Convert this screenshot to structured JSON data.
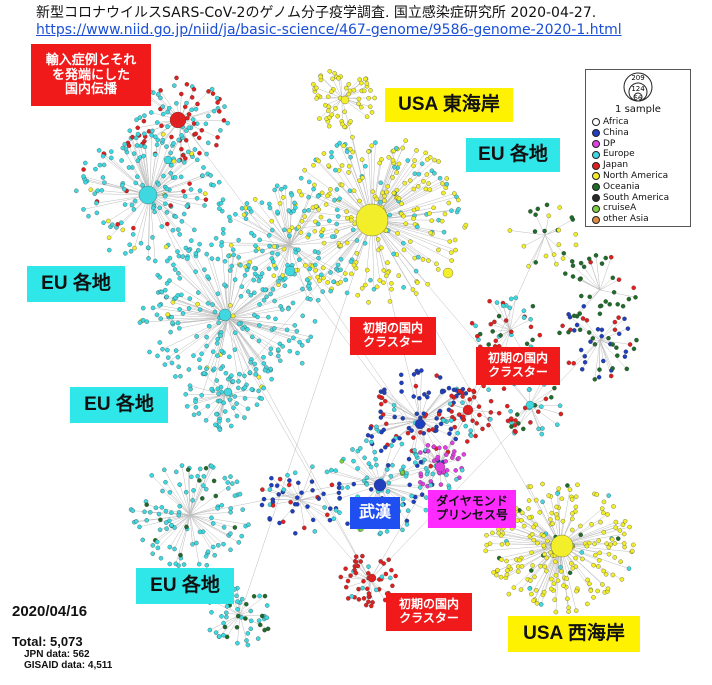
{
  "header": {
    "title": "新型コロナウイルスSARS-CoV-2のゲノム分子疫学調査. 国立感染症研究所 2020-04-27.",
    "link": "https://www.niid.go.jp/niid/ja/basic-science/467-genome/9586-genome-2020-1.html"
  },
  "labels": {
    "import_spread": [
      "輸入症例とそれ",
      "を発端にした",
      "国内伝播"
    ],
    "usa_east": "USA 東海岸",
    "eu_1": "EU 各地",
    "eu_2": "EU 各地",
    "eu_3": "EU 各地",
    "eu_4": "EU 各地",
    "early_cluster_1": [
      "初期の国内",
      "クラスター"
    ],
    "early_cluster_2": [
      "初期の国内",
      "クラスター"
    ],
    "early_cluster_3": [
      "初期の国内",
      "クラスター"
    ],
    "wuhan": "武漢",
    "diamond": [
      "ダイヤモンド",
      "プリンセス号"
    ],
    "usa_west": "USA 西海岸"
  },
  "legend": {
    "size_values": [
      "209",
      "124",
      "56"
    ],
    "one_sample": "1 sample",
    "items": [
      {
        "label": "Africa",
        "color": "#ffffff"
      },
      {
        "label": "China",
        "color": "#1f3fbf"
      },
      {
        "label": "DP",
        "color": "#e040e0"
      },
      {
        "label": "Europe",
        "color": "#3fd8e0"
      },
      {
        "label": "Japan",
        "color": "#e02020"
      },
      {
        "label": "North America",
        "color": "#f2ef2a"
      },
      {
        "label": "Oceania",
        "color": "#1f6b2a"
      },
      {
        "label": "South America",
        "color": "#2a2a2a"
      },
      {
        "label": "cruiseA",
        "color": "#7ad040"
      },
      {
        "label": "other Asia",
        "color": "#e08a40"
      }
    ]
  },
  "stats": {
    "date": "2020/04/16",
    "total": "Total: 5,073",
    "jpn": "JPN data: 562",
    "gisaid": "GISAID data: 4,511"
  },
  "colors": {
    "europe": "#3fd8e0",
    "north_america": "#f2ef2a",
    "japan": "#e02020",
    "china": "#1f3fbf",
    "dp": "#e040e0",
    "oceania": "#1f6b2a",
    "south_america": "#2a2a2a",
    "cruise": "#7ad040",
    "other_asia": "#e08a40",
    "edge": "#bdbdbd"
  }
}
